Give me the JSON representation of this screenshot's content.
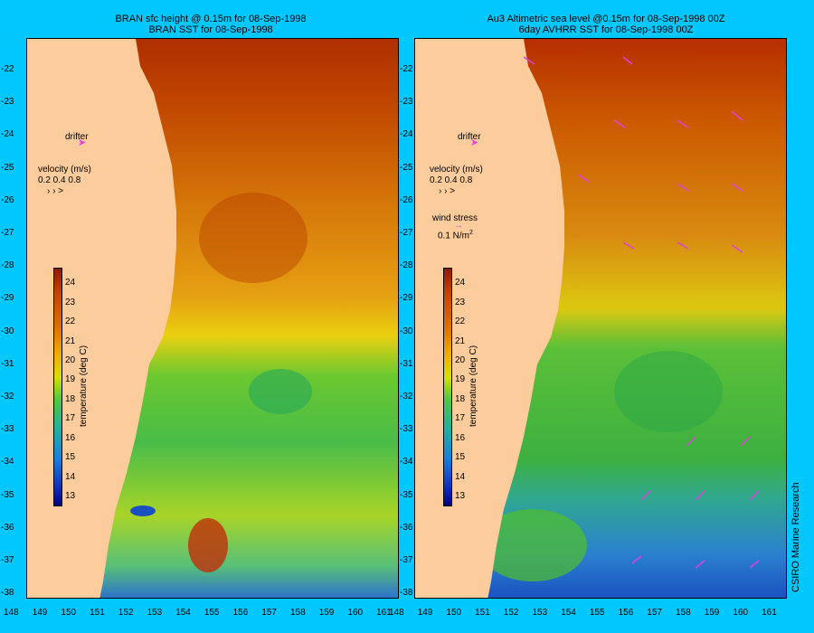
{
  "left_panel": {
    "title_line1": "BRAN sfc height @ 0.15m for 08-Sep-1998",
    "title_line2": "BRAN SST for 08-Sep-1998",
    "drifter_label": "drifter",
    "velocity_label": "velocity (m/s)",
    "velocity_scale": "0.2 0.4 0.8",
    "colorbar_label": "temperature (deg C)"
  },
  "right_panel": {
    "title_line1": "Au3 Altimetric sea level  @0.15m  for 08-Sep-1998 00Z",
    "title_line2": "6day AVHRR SST for 08-Sep-1998 00Z",
    "drifter_label": "drifter",
    "velocity_label": "velocity (m/s)",
    "velocity_scale": "0.2 0.4 0.8",
    "wind_label": "wind stress",
    "wind_scale": "0.1 N/m",
    "wind_sup": "2",
    "colorbar_label": "temperature (deg C)"
  },
  "credit": "CSIRO Marine Research",
  "map_data": {
    "lon_ticks": [
      "148",
      "149",
      "150",
      "151",
      "152",
      "153",
      "154",
      "155",
      "156",
      "157",
      "158",
      "159",
      "160",
      "161"
    ],
    "lat_ticks": [
      "-22",
      "-23",
      "-24",
      "-25",
      "-26",
      "-27",
      "-28",
      "-29",
      "-30",
      "-31",
      "-32",
      "-33",
      "-34",
      "-35",
      "-36",
      "-37",
      "-38"
    ],
    "colorbar_ticks": [
      "24",
      "23",
      "22",
      "21",
      "20",
      "19",
      "18",
      "17",
      "16",
      "15",
      "14",
      "13"
    ],
    "colorbar_min": 12.5,
    "colorbar_max": 24.8,
    "colors": {
      "background": "#00c8ff",
      "land": "#fccc9c",
      "ocean_warm": "#b83200",
      "ocean_cool": "#2a7fd8"
    }
  }
}
